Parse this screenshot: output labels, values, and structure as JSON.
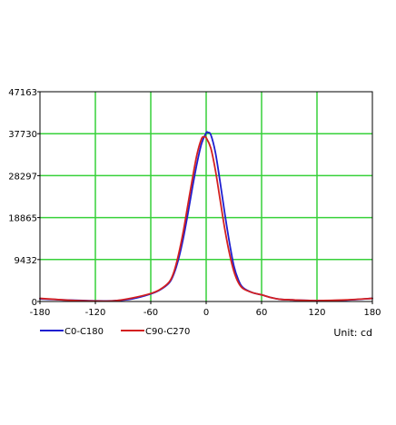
{
  "chart_data": {
    "type": "line",
    "xlim": [
      -180,
      180
    ],
    "ylim": [
      0,
      47163
    ],
    "x_ticks": [
      -180,
      -120,
      -60,
      0,
      60,
      120,
      180
    ],
    "y_ticks": [
      0,
      9432,
      18865,
      28297,
      37730,
      47163
    ],
    "x_tick_labels": [
      "-180",
      "-120",
      "-60",
      "0",
      "60",
      "120",
      "180"
    ],
    "y_tick_labels": [
      "0",
      "9432",
      "18865",
      "28297",
      "37730",
      "47163"
    ],
    "grid": true,
    "legend_position": "bottom-left",
    "unit_label": "Unit: cd",
    "colors": {
      "grid": "#37d13a",
      "axis": "#000000",
      "C0-C180": "#1f1fd0",
      "C90-C270": "#d42020"
    },
    "series": [
      {
        "name": "C0-C180",
        "x": [
          -180,
          -150,
          -120,
          -100,
          -80,
          -60,
          -50,
          -40,
          -35,
          -30,
          -25,
          -20,
          -15,
          -10,
          -5,
          0,
          2,
          5,
          10,
          15,
          20,
          25,
          30,
          35,
          40,
          50,
          60,
          70,
          80,
          90,
          100,
          120,
          150,
          180
        ],
        "y": [
          600,
          320,
          150,
          180,
          600,
          1700,
          2600,
          4200,
          6200,
          9500,
          14000,
          19500,
          25500,
          31000,
          35500,
          37900,
          38000,
          37500,
          33500,
          27000,
          20000,
          13500,
          8000,
          4800,
          3100,
          2000,
          1500,
          900,
          500,
          400,
          300,
          200,
          300,
          700
        ]
      },
      {
        "name": "C90-C270",
        "x": [
          -180,
          -150,
          -120,
          -100,
          -80,
          -60,
          -50,
          -40,
          -35,
          -30,
          -25,
          -20,
          -15,
          -10,
          -5,
          -2,
          0,
          5,
          10,
          15,
          20,
          25,
          30,
          35,
          40,
          50,
          60,
          70,
          80,
          90,
          100,
          120,
          150,
          180
        ],
        "y": [
          700,
          300,
          100,
          150,
          800,
          1800,
          2700,
          4400,
          6600,
          10500,
          15500,
          21500,
          27500,
          33000,
          36600,
          37000,
          36800,
          34500,
          29500,
          23000,
          16500,
          11000,
          6800,
          4200,
          2900,
          2000,
          1500,
          900,
          500,
          400,
          300,
          200,
          350,
          700
        ]
      }
    ]
  }
}
